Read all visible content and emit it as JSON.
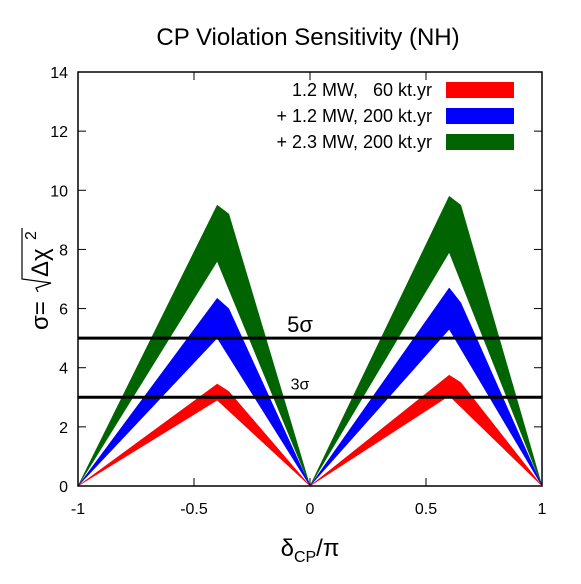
{
  "chart_data": {
    "type": "area",
    "title": "CP Violation Sensitivity (NH)",
    "xlabel": {
      "main": "δ",
      "sub": "CP",
      "suffix": "/π"
    },
    "ylabel": {
      "prefix": "σ=",
      "radicand": "Δχ",
      "exponent": "2"
    },
    "xlim": [
      -1,
      1
    ],
    "ylim": [
      0,
      14
    ],
    "xticks": [
      "-1",
      "-0.5",
      "0",
      "0.5",
      "1"
    ],
    "xtick_values": [
      -1,
      -0.5,
      0,
      0.5,
      1
    ],
    "yticks": [
      "0",
      "2",
      "4",
      "6",
      "8",
      "10",
      "12",
      "14"
    ],
    "ytick_values": [
      0,
      2,
      4,
      6,
      8,
      10,
      12,
      14
    ],
    "grid": false,
    "legend_position": "top-right",
    "series": [
      {
        "name": "+ 2.3 MW, 200 kt.yr",
        "color": "#006400",
        "lower": [
          [
            -1,
            0
          ],
          [
            -0.4,
            7.6
          ],
          [
            0,
            0
          ],
          [
            0.6,
            7.9
          ],
          [
            1,
            0
          ]
        ],
        "upper": [
          [
            -1,
            0
          ],
          [
            -0.4,
            9.5
          ],
          [
            -0.35,
            9.2
          ],
          [
            0,
            0
          ],
          [
            0.6,
            9.8
          ],
          [
            0.65,
            9.5
          ],
          [
            1,
            0
          ]
        ]
      },
      {
        "name": "+ 1.2 MW, 200 kt.yr",
        "color": "#0000ff",
        "lower": [
          [
            -1,
            0
          ],
          [
            -0.4,
            5.0
          ],
          [
            0,
            0
          ],
          [
            0.6,
            5.3
          ],
          [
            1,
            0
          ]
        ],
        "upper": [
          [
            -1,
            0
          ],
          [
            -0.4,
            6.35
          ],
          [
            -0.35,
            6.0
          ],
          [
            0,
            0
          ],
          [
            0.6,
            6.7
          ],
          [
            0.65,
            6.2
          ],
          [
            1,
            0
          ]
        ]
      },
      {
        "name": "1.2 MW,   60 kt.yr",
        "color": "#ff0000",
        "lower": [
          [
            -1,
            0
          ],
          [
            -0.4,
            2.9
          ],
          [
            0,
            0
          ],
          [
            0.6,
            3.05
          ],
          [
            1,
            0
          ]
        ],
        "upper": [
          [
            -1,
            0
          ],
          [
            -0.4,
            3.45
          ],
          [
            -0.35,
            3.2
          ],
          [
            0,
            0
          ],
          [
            0.6,
            3.75
          ],
          [
            0.65,
            3.5
          ],
          [
            1,
            0
          ]
        ]
      }
    ],
    "legend_order": [
      2,
      1,
      0
    ],
    "reference_lines": [
      {
        "y": 5,
        "label": "5σ"
      },
      {
        "y": 3,
        "label": "3σ"
      }
    ]
  }
}
